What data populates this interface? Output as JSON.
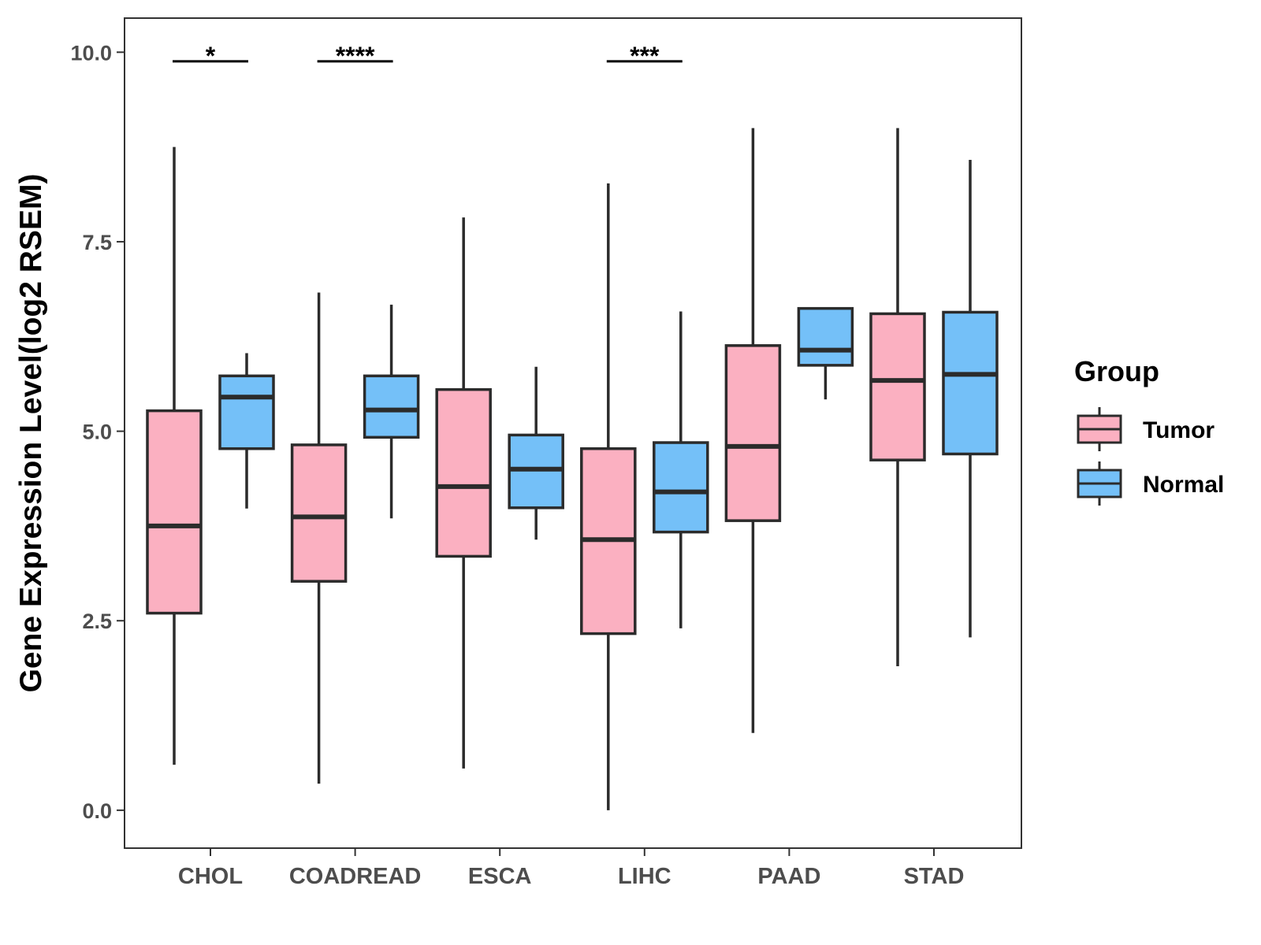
{
  "chart_data": {
    "type": "boxplot",
    "title": "",
    "xlabel": "",
    "ylabel": "Gene Expression Level(log2 RSEM)",
    "ylim": [
      -0.5,
      10.45
    ],
    "yticks": [
      0.0,
      2.5,
      5.0,
      7.5,
      10.0
    ],
    "ytick_labels": [
      "0.0",
      "2.5",
      "5.0",
      "7.5",
      "10.0"
    ],
    "grid": false,
    "categories": [
      "CHOL",
      "COADREAD",
      "ESCA",
      "LIHC",
      "PAAD",
      "STAD"
    ],
    "legend": {
      "title": "Group",
      "position": "right"
    },
    "series": [
      {
        "name": "Tumor",
        "color": "#FBB0C1",
        "boxes": [
          {
            "min": 0.6,
            "q1": 2.6,
            "median": 3.75,
            "q3": 5.27,
            "max": 8.75
          },
          {
            "min": 0.35,
            "q1": 3.02,
            "median": 3.87,
            "q3": 4.82,
            "max": 6.83
          },
          {
            "min": 0.55,
            "q1": 3.35,
            "median": 4.27,
            "q3": 5.55,
            "max": 7.82
          },
          {
            "min": 0.0,
            "q1": 2.33,
            "median": 3.57,
            "q3": 4.77,
            "max": 8.27
          },
          {
            "min": 1.02,
            "q1": 3.82,
            "median": 4.8,
            "q3": 6.13,
            "max": 9.0
          },
          {
            "min": 1.9,
            "q1": 4.62,
            "median": 5.67,
            "q3": 6.55,
            "max": 9.0
          }
        ]
      },
      {
        "name": "Normal",
        "color": "#74C0F8",
        "boxes": [
          {
            "min": 3.98,
            "q1": 4.77,
            "median": 5.45,
            "q3": 5.73,
            "max": 6.03
          },
          {
            "min": 3.85,
            "q1": 4.92,
            "median": 5.28,
            "q3": 5.73,
            "max": 6.67
          },
          {
            "min": 3.57,
            "q1": 3.99,
            "median": 4.5,
            "q3": 4.95,
            "max": 5.85
          },
          {
            "min": 2.4,
            "q1": 3.67,
            "median": 4.2,
            "q3": 4.85,
            "max": 6.58
          },
          {
            "min": 5.42,
            "q1": 5.87,
            "median": 6.07,
            "q3": 6.62,
            "max": 6.62
          },
          {
            "min": 2.28,
            "q1": 4.7,
            "median": 5.75,
            "q3": 6.57,
            "max": 8.58
          }
        ]
      }
    ],
    "annotations": [
      {
        "category": "CHOL",
        "label": "*",
        "y": 9.88
      },
      {
        "category": "COADREAD",
        "label": "****",
        "y": 9.88
      },
      {
        "category": "LIHC",
        "label": "***",
        "y": 9.88
      }
    ]
  }
}
